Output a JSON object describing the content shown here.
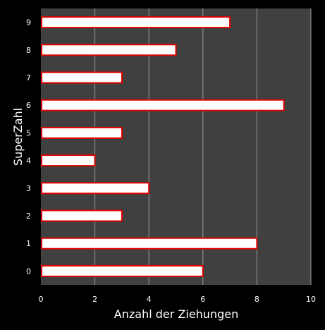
{
  "chart_data": {
    "type": "bar",
    "orientation": "horizontal",
    "categories": [
      "0",
      "1",
      "2",
      "3",
      "4",
      "5",
      "6",
      "7",
      "8",
      "9"
    ],
    "values": [
      6,
      8,
      3,
      4,
      2,
      3,
      9,
      3,
      5,
      7
    ],
    "xlabel": "Anzahl der Ziehungen",
    "ylabel": "SuperZahl",
    "xlim": [
      0,
      10
    ],
    "xticks": [
      "0",
      "2",
      "4",
      "6",
      "8",
      "10"
    ],
    "grid": "vertical",
    "legend": "none"
  },
  "colors": {
    "background": "#000000",
    "plot_area": "#404040",
    "gridline": "#9a9a9a",
    "bar_fill": "#ffffff",
    "bar_stroke": "#e00000",
    "text": "#ffffff"
  }
}
